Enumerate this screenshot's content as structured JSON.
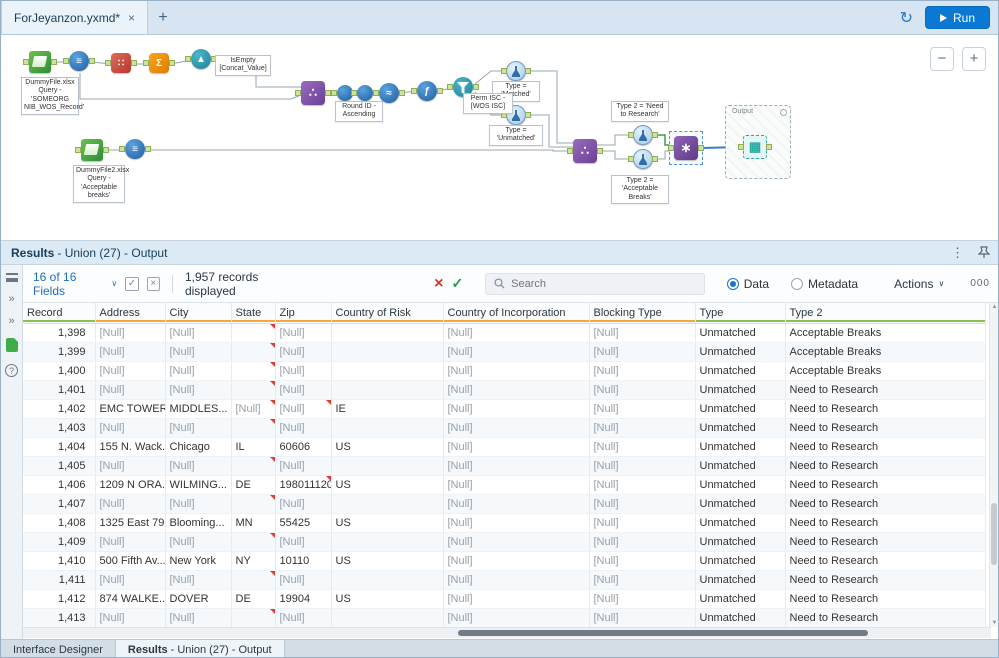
{
  "tab_bar": {
    "title": "ForJeyanzon.yxmd*",
    "close": "×",
    "new_tab": "+",
    "run_label": "Run"
  },
  "canvas": {
    "zoom_out": "−",
    "zoom_in": "+",
    "output_label": "Output",
    "annotations": [
      "DummyFile.xlsx Query - 'SOMEORG NIB_WOS_Record'",
      "IsEmpty [Concat_Value]",
      "Round ID - Ascending",
      "Type = 'Matched'",
      "Type = 'Unmatched'",
      "Perm ISC - [WOS ISC]",
      "Type 2 = 'Need to Research'",
      "Type 2 = 'Acceptable Breaks'",
      "DummyFile2.xlsx Query - 'Acceptable breaks'"
    ]
  },
  "results_panel": {
    "title_bold": "Results",
    "title_rest": "- Union (27) - Output",
    "toolbar": {
      "fields_dropdown": "16 of 16 Fields",
      "records_text": "1,957 records displayed",
      "search_placeholder": "Search",
      "data_label": "Data",
      "metadata_label": "Metadata",
      "actions_label": "Actions",
      "format_label": "000"
    },
    "table": {
      "columns": [
        {
          "key": "record",
          "label": "Record",
          "quality": "#8cc152"
        },
        {
          "key": "address",
          "label": "Address",
          "quality": "#f3a73f"
        },
        {
          "key": "city",
          "label": "City",
          "quality": "#f3a73f"
        },
        {
          "key": "state",
          "label": "State",
          "quality": "#f3a73f"
        },
        {
          "key": "zip",
          "label": "Zip",
          "quality": "#f3a73f"
        },
        {
          "key": "risk",
          "label": "Country of Risk",
          "quality": "#f3a73f"
        },
        {
          "key": "incorp",
          "label": "Country of Incorporation",
          "quality": "#f3a73f"
        },
        {
          "key": "blocking",
          "label": "Blocking Type",
          "quality": "#f3a73f"
        },
        {
          "key": "type",
          "label": "Type",
          "quality": "#8cc152"
        },
        {
          "key": "type2",
          "label": "Type 2",
          "quality": "#8cc152"
        }
      ],
      "rows": [
        {
          "record": "1,398",
          "address": "[Null]",
          "city": "[Null]",
          "state": "",
          "zip": "[Null]",
          "risk": "",
          "incorp": "[Null]",
          "blocking": "[Null]",
          "type": "Unmatched",
          "type2": "Acceptable Breaks",
          "flags": [
            "state"
          ]
        },
        {
          "record": "1,399",
          "address": "[Null]",
          "city": "[Null]",
          "state": "",
          "zip": "[Null]",
          "risk": "",
          "incorp": "[Null]",
          "blocking": "[Null]",
          "type": "Unmatched",
          "type2": "Acceptable Breaks",
          "flags": [
            "state"
          ]
        },
        {
          "record": "1,400",
          "address": "[Null]",
          "city": "[Null]",
          "state": "",
          "zip": "[Null]",
          "risk": "",
          "incorp": "[Null]",
          "blocking": "[Null]",
          "type": "Unmatched",
          "type2": "Acceptable Breaks",
          "flags": [
            "state"
          ]
        },
        {
          "record": "1,401",
          "address": "[Null]",
          "city": "[Null]",
          "state": "",
          "zip": "[Null]",
          "risk": "",
          "incorp": "[Null]",
          "blocking": "[Null]",
          "type": "Unmatched",
          "type2": "Need to Research",
          "flags": [
            "state"
          ]
        },
        {
          "record": "1,402",
          "address": "EMC TOWER,",
          "city": "MIDDLES...",
          "state": "[Null]",
          "zip": "[Null]",
          "risk": "IE",
          "incorp": "[Null]",
          "blocking": "[Null]",
          "type": "Unmatched",
          "type2": "Need to Research",
          "flags": [
            "state",
            "zip"
          ]
        },
        {
          "record": "1,403",
          "address": "[Null]",
          "city": "[Null]",
          "state": "",
          "zip": "[Null]",
          "risk": "",
          "incorp": "[Null]",
          "blocking": "[Null]",
          "type": "Unmatched",
          "type2": "Need to Research",
          "flags": [
            "state"
          ]
        },
        {
          "record": "1,404",
          "address": "155 N. Wack...",
          "city": "Chicago",
          "state": "IL",
          "zip": "60606",
          "risk": "US",
          "incorp": "[Null]",
          "blocking": "[Null]",
          "type": "Unmatched",
          "type2": "Need to Research",
          "flags": []
        },
        {
          "record": "1,405",
          "address": "[Null]",
          "city": "[Null]",
          "state": "",
          "zip": "[Null]",
          "risk": "",
          "incorp": "[Null]",
          "blocking": "[Null]",
          "type": "Unmatched",
          "type2": "Need to Research",
          "flags": [
            "state"
          ]
        },
        {
          "record": "1,406",
          "address": "1209 N ORA...",
          "city": "WILMING...",
          "state": "DE",
          "zip": "198011120",
          "risk": "US",
          "incorp": "[Null]",
          "blocking": "[Null]",
          "type": "Unmatched",
          "type2": "Need to Research",
          "flags": [
            "zip"
          ]
        },
        {
          "record": "1,407",
          "address": "[Null]",
          "city": "[Null]",
          "state": "",
          "zip": "[Null]",
          "risk": "",
          "incorp": "[Null]",
          "blocking": "[Null]",
          "type": "Unmatched",
          "type2": "Need to Research",
          "flags": [
            "state"
          ]
        },
        {
          "record": "1,408",
          "address": "1325 East 79...",
          "city": "Blooming...",
          "state": "MN",
          "zip": "55425",
          "risk": "US",
          "incorp": "[Null]",
          "blocking": "[Null]",
          "type": "Unmatched",
          "type2": "Need to Research",
          "flags": []
        },
        {
          "record": "1,409",
          "address": "[Null]",
          "city": "[Null]",
          "state": "",
          "zip": "[Null]",
          "risk": "",
          "incorp": "[Null]",
          "blocking": "[Null]",
          "type": "Unmatched",
          "type2": "Need to Research",
          "flags": [
            "state"
          ]
        },
        {
          "record": "1,410",
          "address": "500 Fifth Av...",
          "city": "New York",
          "state": "NY",
          "zip": "10110",
          "risk": "US",
          "incorp": "[Null]",
          "blocking": "[Null]",
          "type": "Unmatched",
          "type2": "Need to Research",
          "flags": []
        },
        {
          "record": "1,411",
          "address": "[Null]",
          "city": "[Null]",
          "state": "",
          "zip": "[Null]",
          "risk": "",
          "incorp": "[Null]",
          "blocking": "[Null]",
          "type": "Unmatched",
          "type2": "Need to Research",
          "flags": [
            "state"
          ]
        },
        {
          "record": "1,412",
          "address": "874 WALKE...",
          "city": "DOVER",
          "state": "DE",
          "zip": "19904",
          "risk": "US",
          "incorp": "[Null]",
          "blocking": "[Null]",
          "type": "Unmatched",
          "type2": "Need to Research",
          "flags": []
        },
        {
          "record": "1,413",
          "address": "[Null]",
          "city": "[Null]",
          "state": "",
          "zip": "[Null]",
          "risk": "",
          "incorp": "[Null]",
          "blocking": "[Null]",
          "type": "Unmatched",
          "type2": "Need to Research",
          "flags": [
            "state"
          ]
        }
      ]
    }
  },
  "status_bar": {
    "tab1": "Interface Designer",
    "tab2_bold": "Results",
    "tab2_rest": "- Union (27) - Output"
  }
}
